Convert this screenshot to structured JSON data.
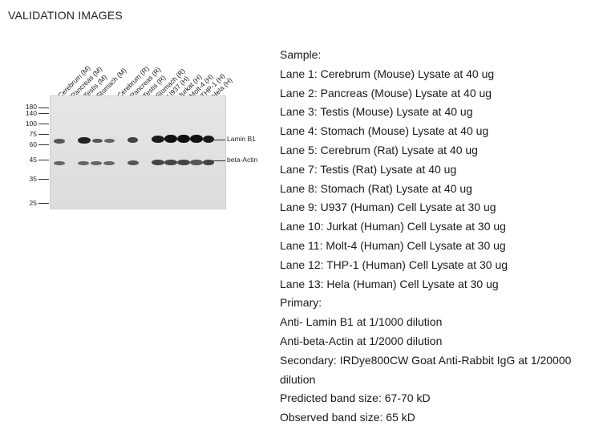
{
  "section_title": "VALIDATION IMAGES",
  "blot": {
    "lane_labels": [
      "Cerebrum (M)",
      "Pancreas (M)",
      "Testis (M)",
      "Stomach (M)",
      "Cerebrum (R)",
      "Pancreas (R)",
      "Testis (R)",
      "Stomach (R)",
      "U937 (H)",
      "Jurkat (H)",
      "Molt-4 (H)",
      "THP-1 (H)",
      "Hela (H)"
    ],
    "mw_markers": [
      "180",
      "140",
      "100",
      "75",
      "60",
      "45",
      "35",
      "25"
    ],
    "band_labels": [
      "Lamin B1",
      "beta-Actin"
    ]
  },
  "info_lines": [
    "Sample:",
    "Lane 1: Cerebrum (Mouse) Lysate at 40 ug",
    "Lane 2: Pancreas (Mouse) Lysate at 40 ug",
    "Lane 3: Testis (Mouse) Lysate at 40 ug",
    "Lane 4: Stomach (Mouse) Lysate at 40 ug",
    "Lane 5: Cerebrum (Rat) Lysate at 40 ug",
    "Lane 7: Testis (Rat) Lysate at 40 ug",
    "Lane 8: Stomach (Rat) Lysate at 40 ug",
    "Lane 9: U937 (Human) Cell Lysate at 30 ug",
    "Lane 10: Jurkat (Human) Cell Lysate at 30 ug",
    "Lane 11: Molt-4 (Human) Cell Lysate at 30 ug",
    "Lane 12: THP-1 (Human) Cell Lysate at 30 ug",
    "Lane 13: Hela (Human) Cell Lysate at 30 ug",
    "Primary:",
    "Anti- Lamin B1 at 1/1000 dilution",
    "Anti-beta-Actin at 1/2000 dilution",
    "Secondary: IRDye800CW Goat Anti-Rabbit IgG at 1/20000 dilution",
    "Predicted band size: 67-70 kD",
    "Observed band size: 65 kD"
  ]
}
